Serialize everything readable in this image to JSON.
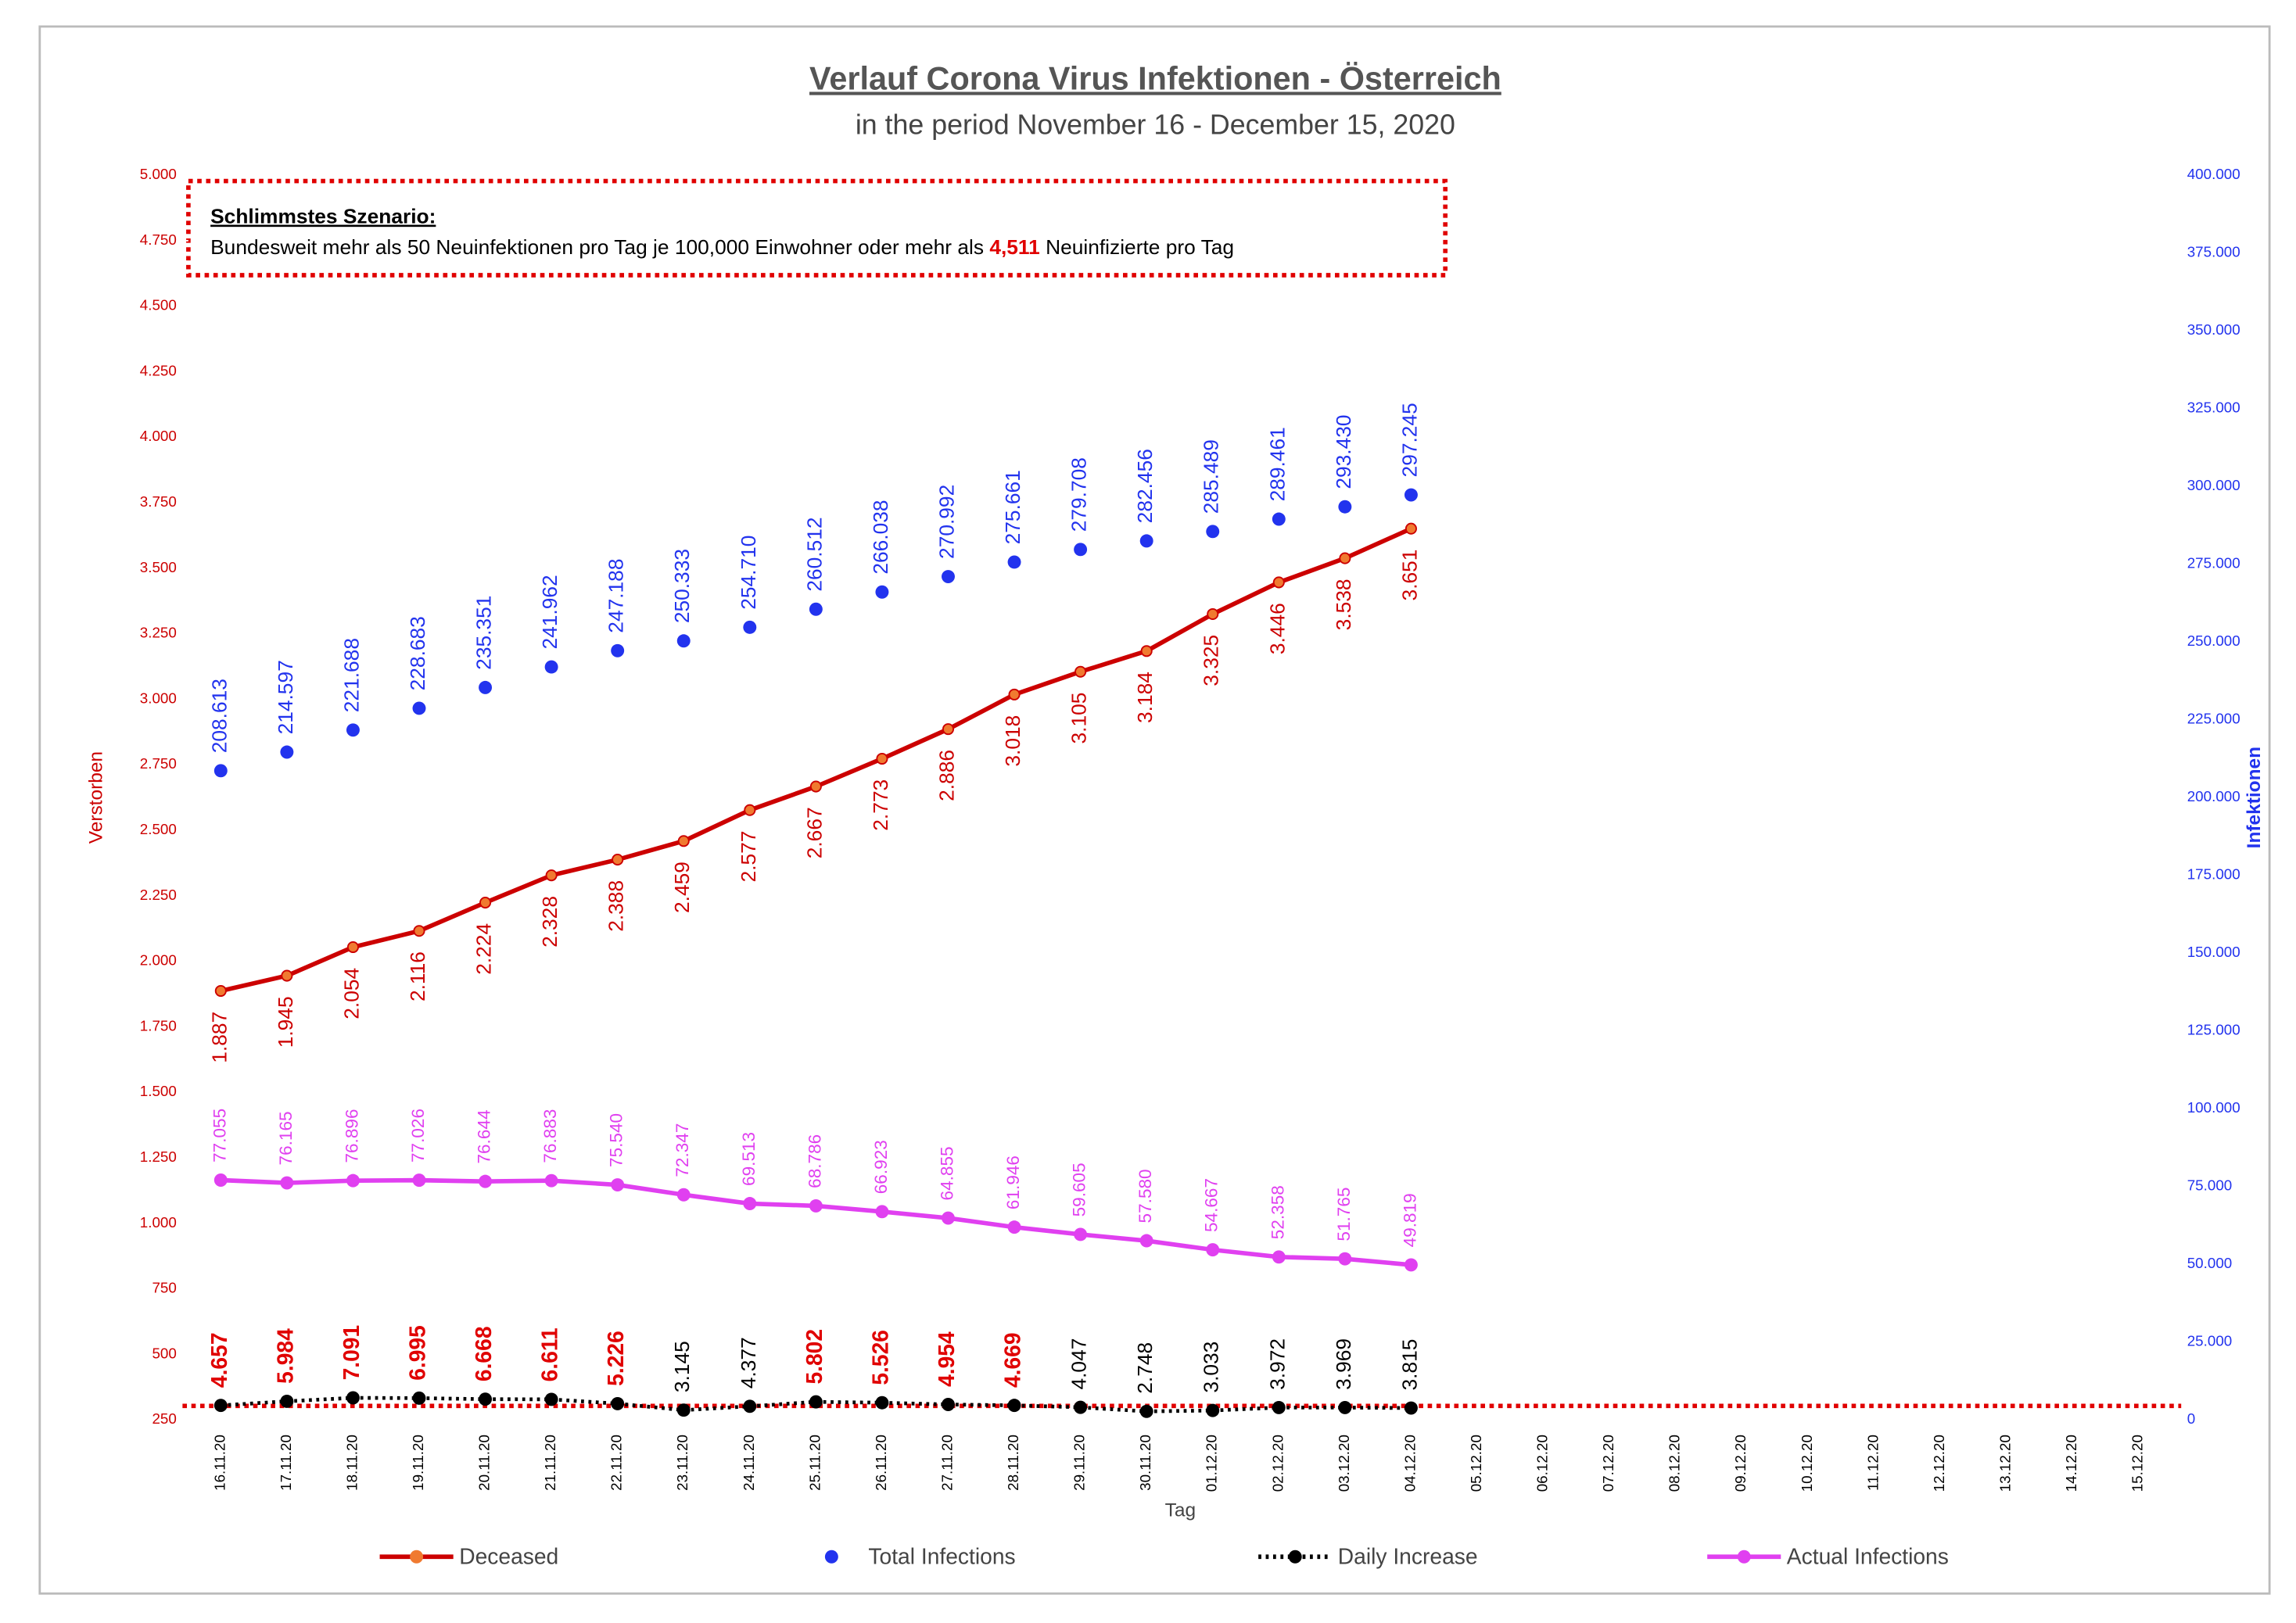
{
  "chart_data": {
    "type": "line",
    "title": "Verlauf Corona Virus Infektionen - Österreich",
    "subtitle": "in the period November 16 - December 15, 2020",
    "x_label": "Tag",
    "y_label": "Verstorben",
    "y2_label": "Infektionen",
    "categories": [
      "16.11.20",
      "17.11.20",
      "18.11.20",
      "19.11.20",
      "20.11.20",
      "21.11.20",
      "22.11.20",
      "23.11.20",
      "24.11.20",
      "25.11.20",
      "26.11.20",
      "27.11.20",
      "28.11.20",
      "29.11.20",
      "30.11.20",
      "01.12.20",
      "02.12.20",
      "03.12.20",
      "04.12.20",
      "05.12.20",
      "06.12.20",
      "07.12.20",
      "08.12.20",
      "09.12.20",
      "10.12.20",
      "11.12.20",
      "12.12.20",
      "13.12.20",
      "14.12.20",
      "15.12.20"
    ],
    "ylim": [
      250,
      5000
    ],
    "yticks": [
      250,
      500,
      750,
      {
        "value": 1000,
        "label": "1.000"
      },
      {
        "value": 1250,
        "label": "1.250"
      },
      {
        "value": 1500,
        "label": "1.500"
      },
      {
        "value": 1750,
        "label": "1.750"
      },
      {
        "value": 2000,
        "label": "2.000"
      },
      {
        "value": 2250,
        "label": "2.250"
      },
      {
        "value": 2500,
        "label": "2.500"
      },
      {
        "value": 2750,
        "label": "2.750"
      },
      {
        "value": 3000,
        "label": "3.000"
      },
      {
        "value": 3250,
        "label": "3.250"
      },
      {
        "value": 3500,
        "label": "3.500"
      },
      {
        "value": 3750,
        "label": "3.750"
      },
      {
        "value": 4000,
        "label": "4.000"
      },
      {
        "value": 4250,
        "label": "4.250"
      },
      {
        "value": 4500,
        "label": "4.500"
      },
      {
        "value": 4750,
        "label": "4.750"
      },
      {
        "value": 5000,
        "label": "5.000"
      }
    ],
    "y2lim": [
      0,
      400000
    ],
    "y2ticks": [
      0,
      {
        "value": 25000,
        "label": "25.000"
      },
      {
        "value": 50000,
        "label": "50.000"
      },
      {
        "value": 75000,
        "label": "75.000"
      },
      {
        "value": 100000,
        "label": "100.000"
      },
      {
        "value": 125000,
        "label": "125.000"
      },
      {
        "value": 150000,
        "label": "150.000"
      },
      {
        "value": 175000,
        "label": "175.000"
      },
      {
        "value": 200000,
        "label": "200.000"
      },
      {
        "value": 225000,
        "label": "225.000"
      },
      {
        "value": 250000,
        "label": "250.000"
      },
      {
        "value": 275000,
        "label": "275.000"
      },
      {
        "value": 300000,
        "label": "300.000"
      },
      {
        "value": 325000,
        "label": "325.000"
      },
      {
        "value": 350000,
        "label": "350.000"
      },
      {
        "value": 375000,
        "label": "375.000"
      },
      {
        "value": 400000,
        "label": "400.000"
      }
    ],
    "annotation": {
      "heading": "Schlimmstes Szenario:",
      "text_before": "Bundesweit mehr als 50 Neuinfektionen pro Tag je 100,000 Einwohner oder mehr als ",
      "text_after": " Neuinfizierte pro Tag"
    },
    "threshold": {
      "value": 4511,
      "label": "4,511",
      "axis": "y2",
      "color": "#e00000"
    },
    "series": [
      {
        "name": "Deceased",
        "color": "#cc0000",
        "axis": "y",
        "line": true,
        "dash": "solid",
        "label_position": "below",
        "values": [
          1887,
          1945,
          2054,
          2116,
          2224,
          2328,
          2388,
          2459,
          2577,
          2667,
          2773,
          2886,
          3018,
          3105,
          3184,
          3325,
          3446,
          3538,
          3651,
          null,
          null,
          null,
          null,
          null,
          null,
          null,
          null,
          null,
          null,
          null
        ],
        "value_labels": [
          "1.887",
          "1.945",
          "2.054",
          "2.116",
          "2.224",
          "2.328",
          "2.388",
          "2.459",
          "2.577",
          "2.667",
          "2.773",
          "2.886",
          "3.018",
          "3.105",
          "3.184",
          "3.325",
          "3.446",
          "3.538",
          "3.651",
          null,
          null,
          null,
          null,
          null,
          null,
          null,
          null,
          null,
          null,
          null
        ]
      },
      {
        "name": "Total Infections",
        "color": "#2233ee",
        "axis": "y2",
        "line": false,
        "dash": "solid",
        "label_position": "above",
        "values": [
          208613,
          214597,
          221688,
          228683,
          235351,
          241962,
          247188,
          250333,
          254710,
          260512,
          266038,
          270992,
          275661,
          279708,
          282456,
          285489,
          289461,
          293430,
          297245,
          null,
          null,
          null,
          null,
          null,
          null,
          null,
          null,
          null,
          null,
          null
        ],
        "value_labels": [
          "208.613",
          "214.597",
          "221.688",
          "228.683",
          "235.351",
          "241.962",
          "247.188",
          "250.333",
          "254.710",
          "260.512",
          "266.038",
          "270.992",
          "275.661",
          "279.708",
          "282.456",
          "285.489",
          "289.461",
          "293.430",
          "297.245",
          null,
          null,
          null,
          null,
          null,
          null,
          null,
          null,
          null,
          null,
          null
        ]
      },
      {
        "name": "Daily Increase",
        "color": "#000000",
        "axis": "y2",
        "line": true,
        "dash": "dotted",
        "label_position": "above",
        "values": [
          4657,
          5984,
          7091,
          6995,
          6668,
          6611,
          5226,
          3145,
          4377,
          5802,
          5526,
          4954,
          4669,
          4047,
          2748,
          3033,
          3972,
          3969,
          3815,
          null,
          null,
          null,
          null,
          null,
          null,
          null,
          null,
          null,
          null,
          null
        ],
        "value_labels": [
          "4.657",
          "5.984",
          "7.091",
          "6.995",
          "6.668",
          "6.611",
          "5.226",
          "3.145",
          "4.377",
          "5.802",
          "5.526",
          "4.954",
          "4.669",
          "4.047",
          "2.748",
          "3.033",
          "3.972",
          "3.969",
          "3.815",
          null,
          null,
          null,
          null,
          null,
          null,
          null,
          null,
          null,
          null,
          null
        ]
      },
      {
        "name": "Actual Infections",
        "color": "#e040f0",
        "axis": "y2",
        "line": true,
        "dash": "solid",
        "label_position": "above",
        "values": [
          77055,
          76165,
          76896,
          77026,
          76644,
          76883,
          75540,
          72347,
          69513,
          68786,
          66923,
          64855,
          61946,
          59605,
          57580,
          54667,
          52358,
          51765,
          49819,
          null,
          null,
          null,
          null,
          null,
          null,
          null,
          null,
          null,
          null,
          null
        ],
        "value_labels": [
          "77.055",
          "76.165",
          "76.896",
          "77.026",
          "76.644",
          "76.883",
          "75.540",
          "72.347",
          "69.513",
          "68.786",
          "66.923",
          "64.855",
          "61.946",
          "59.605",
          "57.580",
          "54.667",
          "52.358",
          "51.765",
          "49.819",
          null,
          null,
          null,
          null,
          null,
          null,
          null,
          null,
          null,
          null,
          null
        ]
      }
    ]
  }
}
